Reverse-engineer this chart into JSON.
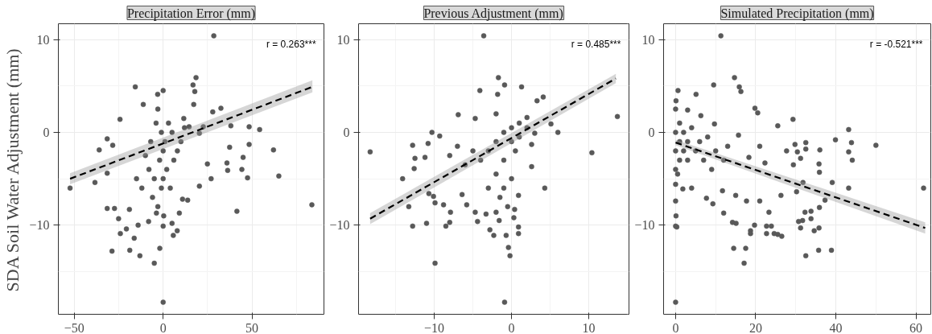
{
  "chart_data": [
    {
      "type": "scatter",
      "title": "Precipitation Error (mm)",
      "ylabel": "SDA Soil Water Adjustment (mm)",
      "annotations": [
        "r = 0.263***"
      ],
      "xlim": [
        -59,
        90.5
      ],
      "ylim": [
        -19.6,
        11.7
      ],
      "xticks": [
        -50,
        0,
        50
      ],
      "yticks": [
        -10,
        0,
        10
      ],
      "grid": true,
      "series": [
        {
          "color": "#595959",
          "marker": "circle",
          "x": [
            28.5,
            -52.4,
            -38.4,
            0,
            -5,
            -28.8,
            -18.8,
            -13.1,
            -1.9,
            83.7,
            65.1,
            62.1,
            54.3,
            48.4,
            48.4,
            47.5,
            45,
            44.3,
            41.5,
            35.9,
            36.3,
            37.4,
            38.1,
            32.5,
            27.9,
            18.5,
            16.8,
            17.8,
            17.2,
            -15.7,
            0,
            -3.1,
            -11.2,
            -24.3,
            -36,
            -31.5,
            -28.4,
            -31.5,
            -31.5,
            -27.4,
            -25.1,
            -24.1,
            -20.7,
            -19,
            -16.3,
            -14.1,
            -8.2,
            -3.8,
            0,
            0.3,
            5,
            5.7,
            7.9,
            9.1,
            10.9,
            13.8,
            20.4,
            24.9,
            27,
            22.6,
            20.4,
            14.6,
            11.6,
            -3,
            -1,
            0,
            1,
            -2,
            2,
            -5,
            3,
            5,
            -7,
            -8,
            8,
            -4,
            0,
            -1,
            -12,
            -6,
            -3,
            4,
            6,
            10,
            12,
            -10,
            -15
          ],
          "values": [
            10.4,
            -6.0,
            -5.4,
            -18.3,
            -14.1,
            -12.8,
            -12.7,
            -13.3,
            -12.5,
            -7.8,
            -4.7,
            -1.9,
            0.3,
            0.6,
            -1.3,
            -4.9,
            -2.7,
            -4.0,
            -8.5,
            -3.3,
            -4.1,
            -1.6,
            0.7,
            2.6,
            2.2,
            5.9,
            5.1,
            4.4,
            3.0,
            4.9,
            4.5,
            4.1,
            3.0,
            1.4,
            -1.9,
            -0.7,
            -1.4,
            -4.4,
            -8.2,
            -8.2,
            -9.3,
            -10.9,
            -10.4,
            -8.3,
            -11.4,
            -10.0,
            -9.6,
            -8.7,
            -10.1,
            -9.0,
            -9.8,
            -11.1,
            -10.6,
            -8.7,
            -7.2,
            -7.3,
            -5.8,
            -3.4,
            -5.0,
            0.6,
            -0.1,
            0.6,
            1.5,
            2.5,
            0,
            -2,
            -1,
            -3,
            -4,
            -5,
            1,
            0,
            -1,
            -4,
            -2,
            1,
            -5,
            -6,
            -6,
            -7,
            -8,
            -6,
            -3,
            -1,
            0.5,
            -2.5,
            -5
          ]
        },
        {
          "type": "line",
          "color": "#000000",
          "marker": "none",
          "line_style": "dashed",
          "x": [
            -52.4,
            84
          ],
          "values": [
            -5.0,
            4.9
          ],
          "lower": [
            -5.6,
            4.3
          ],
          "upper": [
            -4.4,
            5.6
          ]
        }
      ]
    },
    {
      "type": "scatter",
      "title": "Previous Adjustment (mm)",
      "annotations": [
        "r = 0.485***"
      ],
      "xlim": [
        -19.8,
        15.2
      ],
      "ylim": [
        -19.6,
        11.7
      ],
      "xticks": [
        -10,
        0,
        10
      ],
      "yticks": [
        -10,
        0,
        10
      ],
      "grid": true,
      "series": [
        {
          "color": "#595959",
          "marker": "circle",
          "x": [
            -18.3,
            -3.6,
            -0.9,
            -9.9,
            13.7,
            10.4,
            4.3,
            6,
            5.1,
            4.1,
            3.3,
            1.3,
            -0.9,
            -1.7,
            -1.8,
            -4.1,
            -4.7,
            -6.9,
            -10.3,
            -12.8,
            -12.5,
            -12.6,
            -14.1,
            -13.3,
            -12.8,
            -11,
            -8.5,
            -8,
            -7.9,
            -8.8,
            -9.9,
            -10.1,
            -10.7,
            -11.2,
            -10.8,
            -9.3,
            -4.4,
            -2.8,
            -2.3,
            -0.7,
            -0.4,
            -0.2,
            0.9,
            0.9,
            0.3,
            0.4,
            -1.6,
            -2,
            -3.3,
            -4.7,
            -5.8,
            -6.4,
            0.9,
            2.6,
            2.6,
            3,
            2,
            -1,
            0,
            -2,
            -3,
            0,
            -1,
            -4,
            -2,
            1,
            0.5,
            -5,
            -6,
            -1,
            0,
            -3,
            1,
            -7,
            -8,
            -2,
            2,
            -0.5,
            -1.5
          ],
          "values": [
            -2.1,
            10.4,
            -18.3,
            -14.1,
            1.7,
            -2.2,
            -6.0,
            0,
            0.9,
            3.8,
            3.4,
            4.9,
            5.1,
            5.9,
            4.1,
            4.5,
            1.5,
            1.9,
            0,
            -1.4,
            -2.8,
            -3.9,
            -5.0,
            -8.0,
            -10.1,
            -9.8,
            -10.1,
            -9.7,
            -8.6,
            -7.8,
            -7.6,
            -6.9,
            -6.6,
            -2.7,
            -1.2,
            -0.4,
            -9.6,
            -10.5,
            -11.1,
            -11.1,
            -12.4,
            -13.3,
            -10.9,
            -10.2,
            -9.2,
            -8.3,
            -9.5,
            -8.6,
            -8.8,
            -8.6,
            -7.8,
            -6.7,
            -6.8,
            -3.7,
            -1.3,
            -0.1,
            1.6,
            0,
            0.5,
            -1,
            -2,
            -1,
            -3,
            -3,
            -4.5,
            1,
            -2,
            -2,
            -3.5,
            -6,
            -5,
            -6,
            -0.5,
            -1.5,
            -2.5,
            2,
            0.5,
            -8,
            -7
          ]
        },
        {
          "type": "line",
          "color": "#000000",
          "marker": "none",
          "line_style": "dashed",
          "x": [
            -18.3,
            13.5
          ],
          "values": [
            -9.3,
            5.8
          ],
          "lower": [
            -9.9,
            5.3
          ],
          "upper": [
            -8.7,
            6.3
          ]
        }
      ]
    },
    {
      "type": "scatter",
      "title": "Simulated Precipitation (mm)",
      "annotations": [
        "r = -0.521***"
      ],
      "xlim": [
        -3,
        63.7
      ],
      "ylim": [
        -19.6,
        11.7
      ],
      "xticks": [
        0,
        20,
        40,
        60
      ],
      "yticks": [
        -10,
        0,
        10
      ],
      "grid": true,
      "series": [
        {
          "color": "#595959",
          "marker": "circle",
          "x": [
            0,
            11.3,
            17.1,
            32.5,
            35.7,
            38.9,
            14.5,
            17.5,
            61.9,
            50,
            43.2,
            43.9,
            43.2,
            44.1,
            43.2,
            39.9,
            39.1,
            37.3,
            36,
            35.8,
            35.9,
            35.9,
            35.8,
            34.6,
            33.8,
            33.8,
            32.5,
            32.5,
            31.2,
            30.4,
            29.8,
            29.3,
            29.4,
            30.2,
            30.7,
            31.2,
            31.7,
            32.3,
            31.8,
            27.7,
            26.5,
            25.5,
            24.6,
            22.7,
            22.7,
            23.9,
            19.7,
            18.7,
            18.7,
            15.1,
            14.2,
            12,
            25.5,
            19.8,
            20.5,
            14.7,
            15.9,
            16.3,
            9.5,
            5.1,
            0.6,
            0.1,
            0,
            0,
            0.1,
            0.3,
            0,
            1.8,
            4,
            7.7,
            9.3,
            11.7,
            15,
            17.7,
            21,
            23.3,
            26.3,
            22.3,
            21,
            18.3,
            15.7,
            13,
            9.7,
            6.3,
            3,
            0,
            0,
            0,
            0,
            1,
            1,
            1,
            2,
            2,
            3,
            3,
            4,
            5,
            6,
            7,
            8,
            9,
            10,
            12,
            0.5
          ],
          "values": [
            -18.3,
            10.4,
            -14.1,
            -13.3,
            -12.7,
            -12.7,
            -12.5,
            -12.5,
            -6.0,
            -1.4,
            0.3,
            -1.1,
            -2.1,
            -3.0,
            -6.0,
            -0.8,
            -5.4,
            -7.3,
            -1.9,
            -3.4,
            -4.3,
            -8.1,
            -10.3,
            -10.6,
            -9.3,
            -8.5,
            -1.1,
            -1.8,
            -2.8,
            -2.1,
            -1.3,
            1.4,
            -3.5,
            -6.4,
            -9.6,
            -10.3,
            -9.5,
            -8.6,
            -5.4,
            -2.0,
            -11.2,
            -11.0,
            -10.9,
            -10.9,
            -10.1,
            -10.1,
            -10.0,
            -10.6,
            -10.9,
            -9.8,
            -9.7,
            -8.7,
            0.7,
            2.6,
            2.1,
            5.9,
            4.9,
            4.4,
            5.1,
            4.1,
            4.5,
            3.4,
            -5.6,
            -7.4,
            -9.0,
            -10.2,
            -10.1,
            -6.1,
            -6.0,
            -7.1,
            -7.7,
            -6.3,
            -6.8,
            -7.4,
            -7.4,
            -8.6,
            -6.8,
            -3.3,
            -1.5,
            -2.7,
            -0.3,
            -1.5,
            0.9,
            1.8,
            2.4,
            2.5,
            0,
            -2,
            -4,
            1,
            -1,
            -3,
            0,
            -2,
            -1,
            -3,
            0.5,
            -2,
            -1,
            -3,
            -0.5,
            -4,
            -2,
            -3,
            -4.5
          ]
        },
        {
          "type": "line",
          "color": "#000000",
          "marker": "none",
          "line_style": "dashed",
          "x": [
            0,
            62.3
          ],
          "values": [
            -1.1,
            -10.3
          ],
          "lower": [
            -1.4,
            -10.9
          ],
          "upper": [
            -0.8,
            -9.7
          ]
        }
      ]
    }
  ]
}
